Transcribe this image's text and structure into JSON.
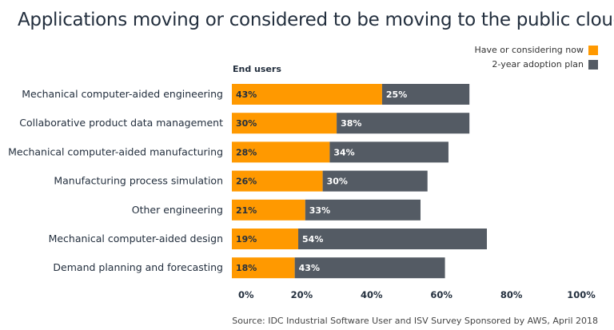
{
  "chart_data": {
    "type": "bar",
    "orientation": "horizontal",
    "stacked": true,
    "title": "Applications moving or considered to be moving to the public cloud",
    "group_label": "End users",
    "categories": [
      "Mechanical computer-aided engineering",
      "Collaborative product data management",
      "Mechanical computer-aided manufacturing",
      "Manufacturing process simulation",
      "Other engineering",
      "Mechanical computer-aided design",
      "Demand planning and forecasting"
    ],
    "series": [
      {
        "name": "Have or considering now",
        "color": "#ff9900",
        "values": [
          43,
          30,
          28,
          26,
          21,
          19,
          18
        ]
      },
      {
        "name": "2-year adoption plan",
        "color": "#545b64",
        "values": [
          25,
          38,
          34,
          30,
          33,
          54,
          43
        ]
      }
    ],
    "xlim": [
      0,
      100
    ],
    "xticks": [
      "0%",
      "20%",
      "40%",
      "60%",
      "80%",
      "100%"
    ],
    "grid": false,
    "legend": "top-right",
    "source": "Source: IDC Industrial Software User and ISV Survey Sponsored by AWS, April 2018"
  }
}
